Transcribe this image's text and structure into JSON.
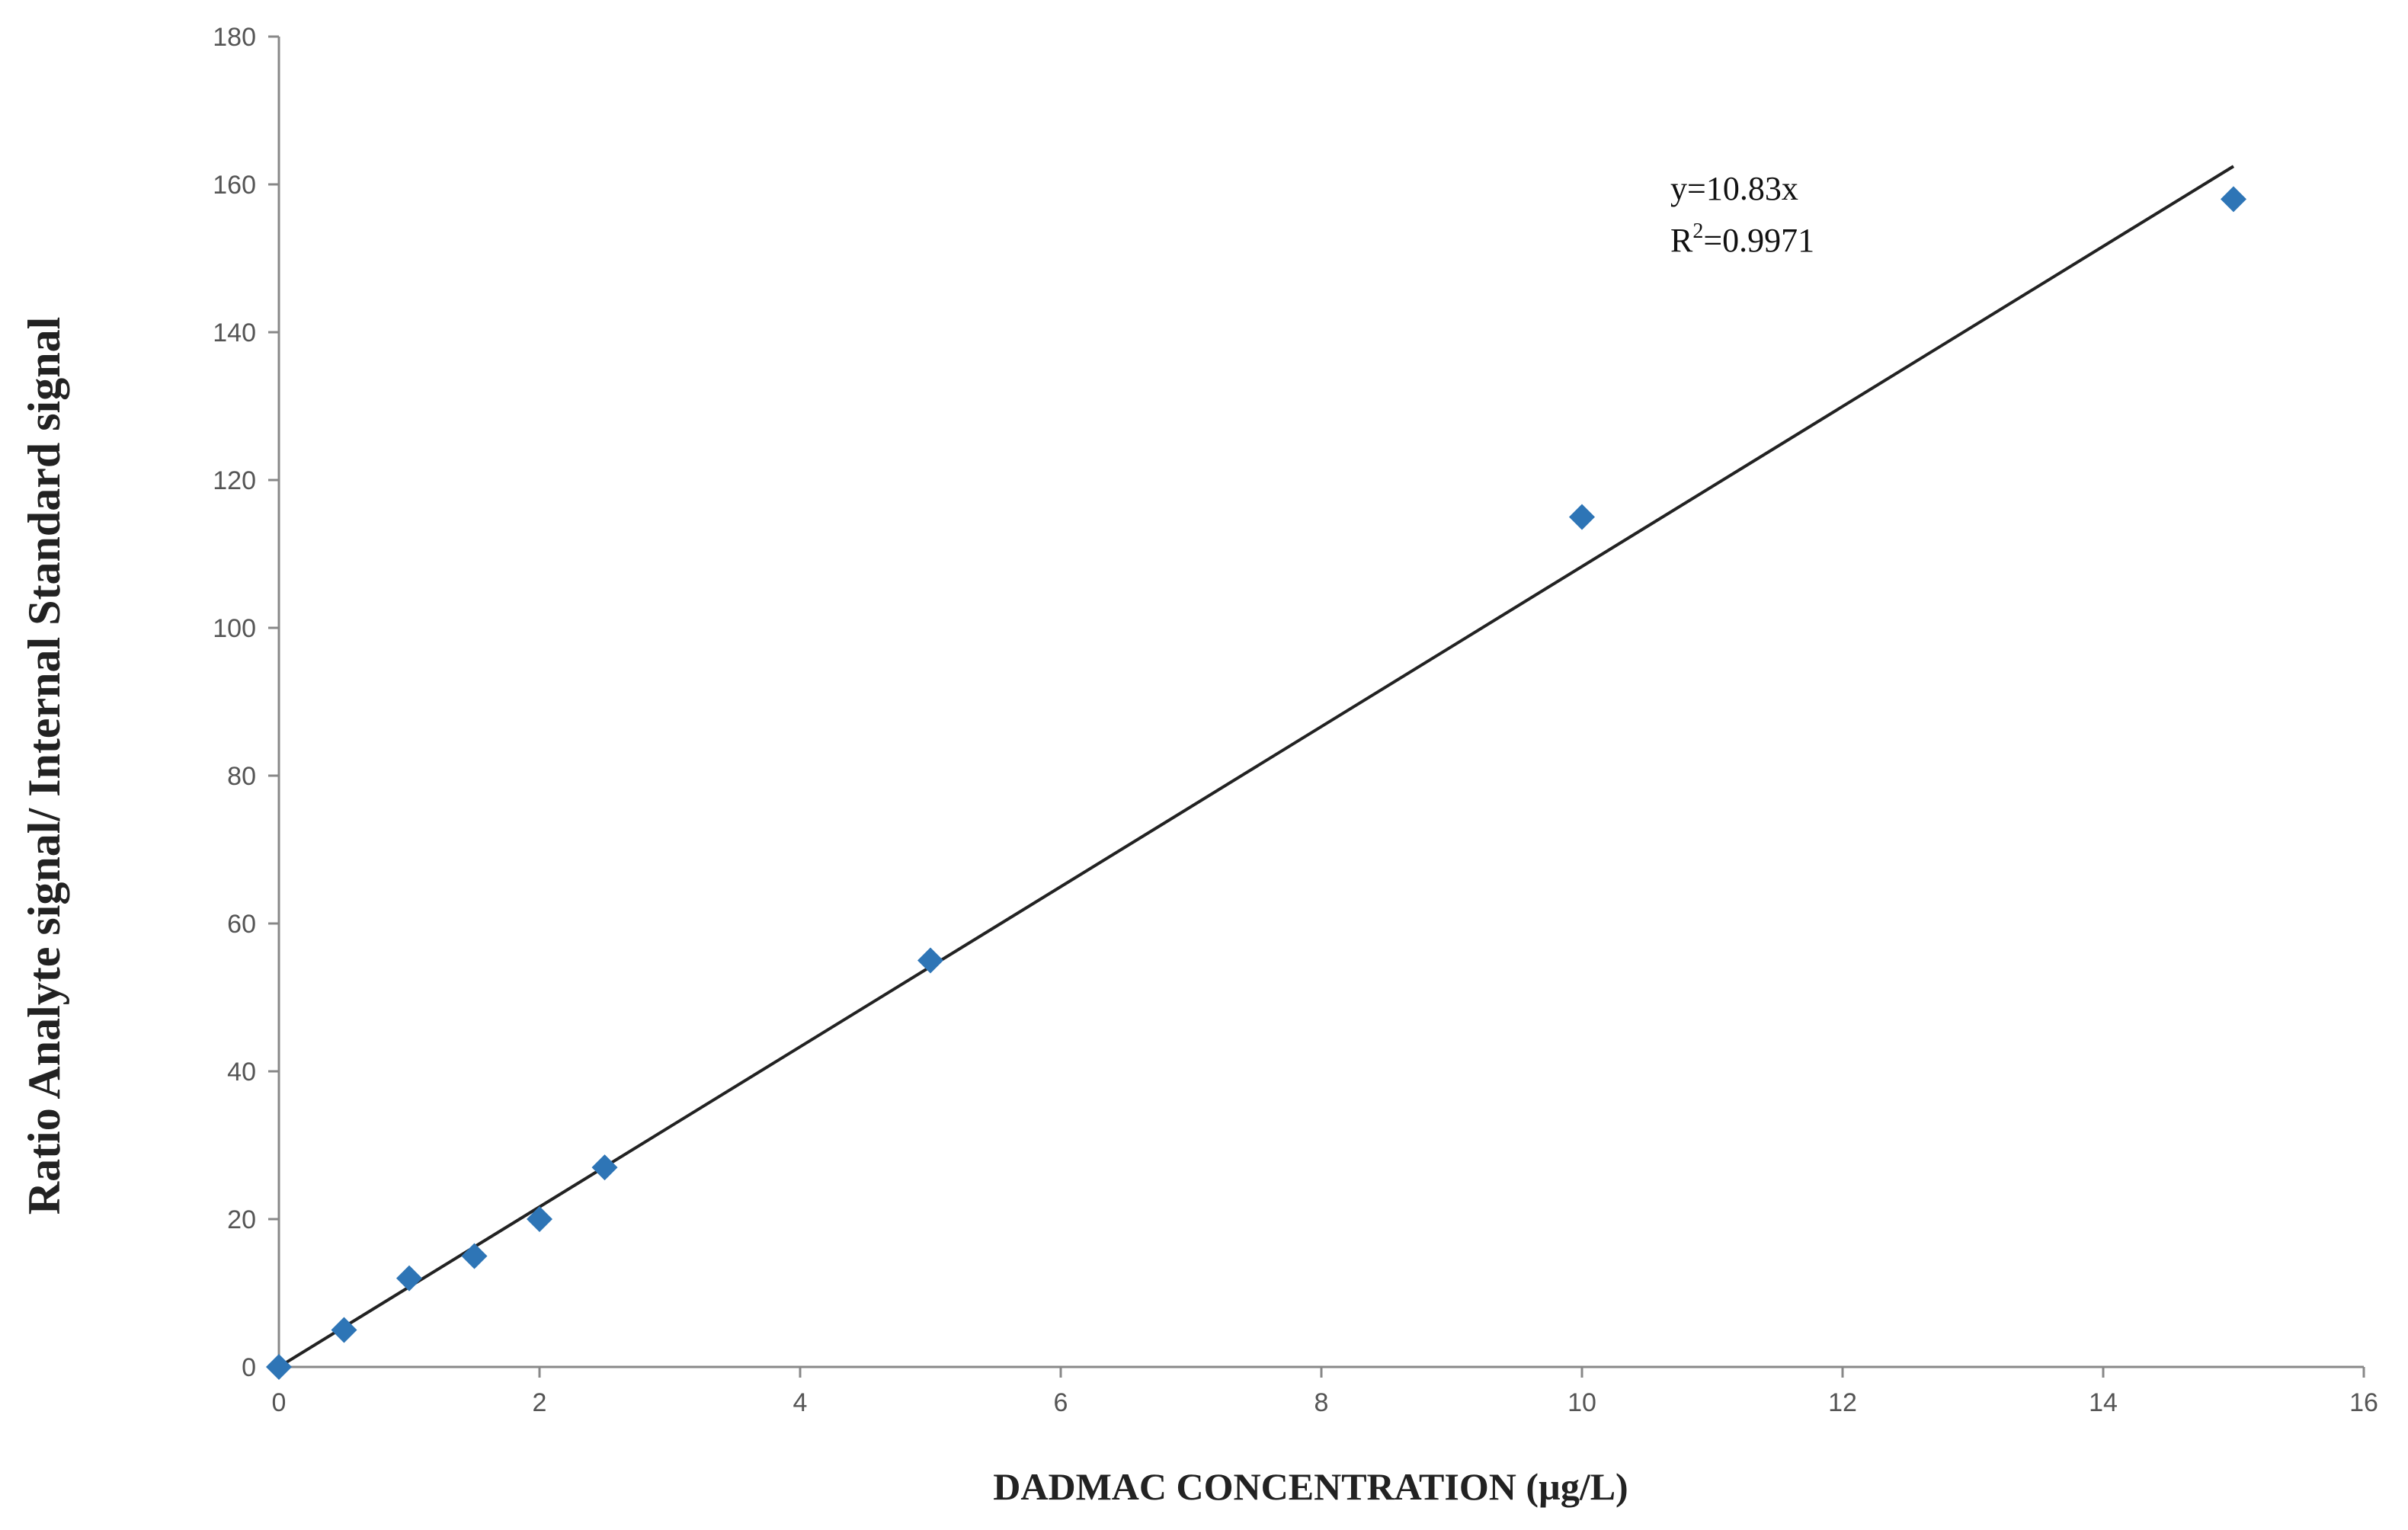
{
  "chart_data": {
    "type": "scatter",
    "title": "",
    "xlabel": "DADMAC CONCENTRATION (µg/L)",
    "ylabel": "Ratio Analyte signal/ Internal Standard signal",
    "xlim": [
      0,
      16
    ],
    "ylim": [
      0,
      180
    ],
    "xticks": [
      "0",
      "2",
      "4",
      "6",
      "8",
      "10",
      "12",
      "14",
      "16"
    ],
    "yticks": [
      "0",
      "20",
      "40",
      "60",
      "80",
      "100",
      "120",
      "140",
      "160",
      "180"
    ],
    "grid": false,
    "legend": "none",
    "marker_color": "#2E75B6",
    "trendline_color": "#222222",
    "series": [
      {
        "x": [
          0,
          0.5,
          1,
          1.5,
          2,
          2.5,
          5,
          10,
          15
        ],
        "y": [
          0,
          5,
          12,
          15,
          20,
          27,
          55,
          115,
          158
        ]
      }
    ],
    "trendline": {
      "slope": 10.83,
      "intercept": 0,
      "x_range": [
        0,
        15
      ]
    },
    "annotations": {
      "equation": "y=10.83x",
      "r2_prefix": "R",
      "r2_sup": "2",
      "r2_value": "=0.9971"
    }
  }
}
